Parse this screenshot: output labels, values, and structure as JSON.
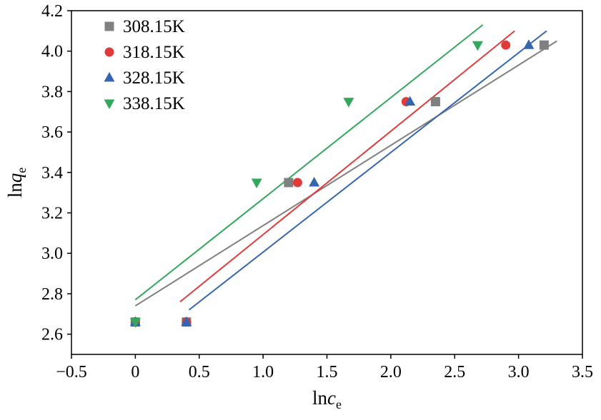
{
  "figure": {
    "background": "#ffffff",
    "axis_color": "#000000",
    "text_color": "#000000"
  },
  "chart_data": {
    "type": "scatter",
    "title": "",
    "xlabel": "ln c_e",
    "xlabel_parts": {
      "prefix": "ln",
      "variable": "c",
      "subscript": "e"
    },
    "ylabel": "ln q_e",
    "ylabel_parts": {
      "prefix": "ln",
      "variable": "q",
      "subscript": "e"
    },
    "xlim": [
      -0.5,
      3.5
    ],
    "ylim": [
      2.5,
      4.2
    ],
    "xticks": [
      -0.5,
      0,
      0.5,
      1.0,
      1.5,
      2.0,
      2.5,
      3.0,
      3.5
    ],
    "xtick_labels": [
      "−0.5",
      "0",
      "0.5",
      "1.0",
      "1.5",
      "2.0",
      "2.5",
      "3.0",
      "3.5"
    ],
    "yticks": [
      2.6,
      2.8,
      3.0,
      3.2,
      3.4,
      3.6,
      3.8,
      4.0,
      4.2
    ],
    "ytick_labels": [
      "2.6",
      "2.8",
      "3.0",
      "3.2",
      "3.4",
      "3.6",
      "3.8",
      "4.0",
      "4.2"
    ],
    "grid": false,
    "legend": {
      "position": "top-left",
      "entries": [
        "308.15K",
        "318.15K",
        "328.15K",
        "338.15K"
      ]
    },
    "series": [
      {
        "name": "308.15K",
        "color": "#808080",
        "marker": "square",
        "points": [
          [
            0.0,
            2.66
          ],
          [
            0.4,
            2.66
          ],
          [
            1.2,
            3.35
          ],
          [
            2.35,
            3.75
          ],
          [
            3.2,
            4.03
          ]
        ],
        "fit_line": [
          [
            0.0,
            2.74
          ],
          [
            3.3,
            4.05
          ]
        ]
      },
      {
        "name": "318.15K",
        "color": "#e03b3b",
        "marker": "circle",
        "points": [
          [
            0.0,
            2.66
          ],
          [
            0.4,
            2.66
          ],
          [
            1.27,
            3.35
          ],
          [
            2.12,
            3.75
          ],
          [
            2.9,
            4.03
          ]
        ],
        "fit_line": [
          [
            0.35,
            2.76
          ],
          [
            2.97,
            4.1
          ]
        ]
      },
      {
        "name": "328.15K",
        "color": "#3565b0",
        "marker": "triangle-up",
        "points": [
          [
            0.0,
            2.66
          ],
          [
            0.4,
            2.66
          ],
          [
            1.4,
            3.35
          ],
          [
            2.15,
            3.75
          ],
          [
            3.08,
            4.03
          ]
        ],
        "fit_line": [
          [
            0.42,
            2.72
          ],
          [
            3.22,
            4.1
          ]
        ]
      },
      {
        "name": "338.15K",
        "color": "#33a85c",
        "marker": "triangle-down",
        "points": [
          [
            0.0,
            2.66
          ],
          [
            0.95,
            3.35
          ],
          [
            1.67,
            3.75
          ],
          [
            2.68,
            4.03
          ]
        ],
        "fit_line": [
          [
            0.0,
            2.77
          ],
          [
            2.72,
            4.13
          ]
        ]
      }
    ]
  }
}
